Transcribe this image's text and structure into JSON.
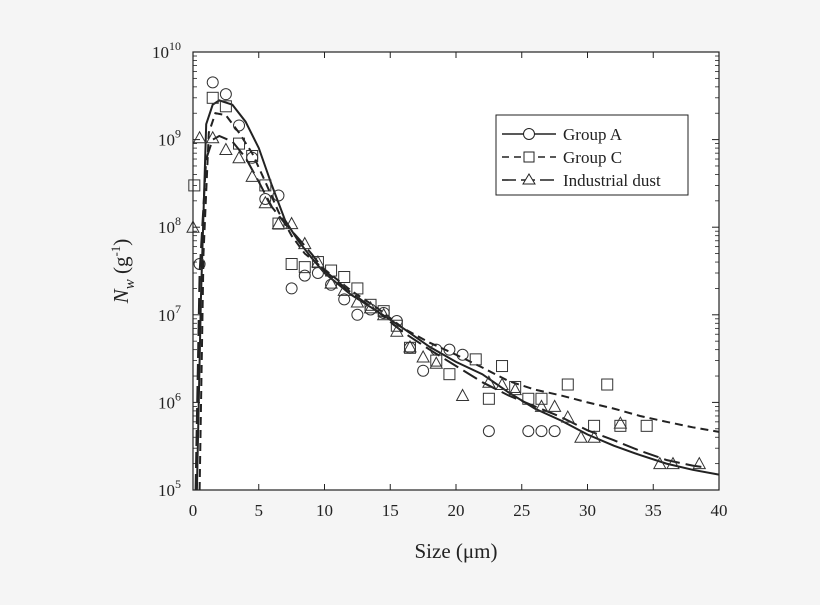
{
  "chart_data": {
    "type": "scatter",
    "xlabel": "Size (μm)",
    "ylabel": {
      "main": "N",
      "sub": "w",
      "unit_open": " (g",
      "unit_exp": "-1",
      "unit_close": ")"
    },
    "xlim": [
      0,
      40
    ],
    "ylim": [
      100000,
      10000000000
    ],
    "yscale": "log",
    "xticks": [
      0,
      5,
      10,
      15,
      20,
      25,
      30,
      35,
      40
    ],
    "yticks": [
      {
        "value": 100000,
        "base": "10",
        "exp": "5"
      },
      {
        "value": 1000000,
        "base": "10",
        "exp": "6"
      },
      {
        "value": 10000000,
        "base": "10",
        "exp": "7"
      },
      {
        "value": 100000000,
        "base": "10",
        "exp": "8"
      },
      {
        "value": 1000000000,
        "base": "10",
        "exp": "9"
      },
      {
        "value": 10000000000,
        "base": "10",
        "exp": "10"
      }
    ],
    "legend_position": "top-right",
    "series": [
      {
        "name": "Group A",
        "marker": "circle",
        "line": "solid",
        "points": [
          [
            0.5,
            38000000
          ],
          [
            1.5,
            4500000000
          ],
          [
            2.5,
            3300000000
          ],
          [
            3.5,
            1450000000
          ],
          [
            4.5,
            620000000
          ],
          [
            5.5,
            210000000
          ],
          [
            6.5,
            230000000
          ],
          [
            7.5,
            20000000
          ],
          [
            8.5,
            28000000
          ],
          [
            9.5,
            30000000
          ],
          [
            10.5,
            22000000
          ],
          [
            11.5,
            15000000
          ],
          [
            12.5,
            10000000
          ],
          [
            13.5,
            11500000
          ],
          [
            14.5,
            10500000
          ],
          [
            15.5,
            8500000
          ],
          [
            16.5,
            4200000
          ],
          [
            17.5,
            2300000
          ],
          [
            18.5,
            4000000
          ],
          [
            19.5,
            4000000
          ],
          [
            20.5,
            3500000
          ],
          [
            22.5,
            470000
          ],
          [
            25.5,
            470000
          ],
          [
            26.5,
            470000
          ],
          [
            27.5,
            470000
          ]
        ],
        "curve": [
          [
            0.3,
            100000
          ],
          [
            0.6,
            15000000
          ],
          [
            1,
            1500000000
          ],
          [
            1.5,
            2500000000
          ],
          [
            2,
            2800000000
          ],
          [
            3,
            2500000000
          ],
          [
            4,
            1600000000
          ],
          [
            5,
            800000000
          ],
          [
            6,
            300000000
          ],
          [
            7,
            120000000
          ],
          [
            8,
            70000000
          ],
          [
            9,
            45000000
          ],
          [
            10,
            30000000
          ],
          [
            12,
            17000000
          ],
          [
            14,
            11000000
          ],
          [
            16,
            7000000
          ],
          [
            18,
            4300000
          ],
          [
            20,
            2900000
          ],
          [
            22,
            2100000
          ],
          [
            24,
            1300000
          ],
          [
            26,
            850000
          ],
          [
            28,
            620000
          ],
          [
            30,
            430000
          ],
          [
            32,
            320000
          ],
          [
            34,
            250000
          ],
          [
            36,
            200000
          ],
          [
            38,
            170000
          ],
          [
            40,
            150000
          ]
        ]
      },
      {
        "name": "Group C",
        "marker": "square",
        "line": "dashed",
        "points": [
          [
            0.1,
            300000000
          ],
          [
            1.5,
            3000000000
          ],
          [
            2.5,
            2400000000
          ],
          [
            3.5,
            900000000
          ],
          [
            4.5,
            650000000
          ],
          [
            5.5,
            300000000
          ],
          [
            6.5,
            110000000
          ],
          [
            7.5,
            38000000
          ],
          [
            8.5,
            35000000
          ],
          [
            9.5,
            40000000
          ],
          [
            10.5,
            32000000
          ],
          [
            11.5,
            27000000
          ],
          [
            12.5,
            20000000
          ],
          [
            13.5,
            13000000
          ],
          [
            14.5,
            11000000
          ],
          [
            15.5,
            7500000
          ],
          [
            16.5,
            4200000
          ],
          [
            18.5,
            3000000
          ],
          [
            19.5,
            2100000
          ],
          [
            21.5,
            3100000
          ],
          [
            22.5,
            1100000
          ],
          [
            23.5,
            2600000
          ],
          [
            24.5,
            1500000
          ],
          [
            25.5,
            1100000
          ],
          [
            26.5,
            1100000
          ],
          [
            28.5,
            1600000
          ],
          [
            30.5,
            540000
          ],
          [
            31.5,
            1600000
          ],
          [
            32.5,
            540000
          ],
          [
            34.5,
            540000
          ]
        ],
        "curve": [
          [
            0.5,
            100000
          ],
          [
            0.8,
            50000000
          ],
          [
            1.2,
            1200000000
          ],
          [
            1.7,
            2000000000
          ],
          [
            2.5,
            1900000000
          ],
          [
            3.5,
            1200000000
          ],
          [
            4.5,
            700000000
          ],
          [
            5.5,
            330000000
          ],
          [
            6.5,
            150000000
          ],
          [
            7.5,
            80000000
          ],
          [
            8.5,
            50000000
          ],
          [
            10,
            33000000
          ],
          [
            12,
            19000000
          ],
          [
            14,
            12000000
          ],
          [
            16,
            7000000
          ],
          [
            18,
            4800000
          ],
          [
            20,
            3500000
          ],
          [
            22,
            2500000
          ],
          [
            24,
            1750000
          ],
          [
            26,
            1400000
          ],
          [
            28,
            1200000
          ],
          [
            30,
            1000000
          ],
          [
            32,
            850000
          ],
          [
            34,
            700000
          ],
          [
            36,
            600000
          ],
          [
            38,
            520000
          ],
          [
            40,
            460000
          ]
        ]
      },
      {
        "name": "Industrial dust",
        "marker": "triangle",
        "line": "longdash",
        "points": [
          [
            0,
            100000000
          ],
          [
            0.5,
            1050000000
          ],
          [
            1.5,
            1050000000
          ],
          [
            2.5,
            770000000
          ],
          [
            3.5,
            620000000
          ],
          [
            4.5,
            380000000
          ],
          [
            5.5,
            190000000
          ],
          [
            6.5,
            110000000
          ],
          [
            7.5,
            110000000
          ],
          [
            8.5,
            65000000
          ],
          [
            9.5,
            40000000
          ],
          [
            10.5,
            23000000
          ],
          [
            11.5,
            19000000
          ],
          [
            12.5,
            14000000
          ],
          [
            13.5,
            12000000
          ],
          [
            14.5,
            10000000
          ],
          [
            15.5,
            6500000
          ],
          [
            16.5,
            4300000
          ],
          [
            17.5,
            3300000
          ],
          [
            18.5,
            2800000
          ],
          [
            20.5,
            1200000
          ],
          [
            22.5,
            1700000
          ],
          [
            23.5,
            1600000
          ],
          [
            24.5,
            1400000
          ],
          [
            26.5,
            900000
          ],
          [
            27.5,
            900000
          ],
          [
            28.5,
            680000
          ],
          [
            29.5,
            400000
          ],
          [
            30.5,
            400000
          ],
          [
            32.5,
            580000
          ],
          [
            35.5,
            200000
          ],
          [
            36.5,
            200000
          ],
          [
            38.5,
            200000
          ]
        ],
        "curve": [
          [
            0.2,
            100000
          ],
          [
            0.5,
            30000000
          ],
          [
            1,
            600000000
          ],
          [
            1.5,
            1000000000
          ],
          [
            2,
            1100000000
          ],
          [
            3,
            950000000
          ],
          [
            4,
            620000000
          ],
          [
            5,
            330000000
          ],
          [
            6,
            170000000
          ],
          [
            7,
            110000000
          ],
          [
            8,
            75000000
          ],
          [
            9,
            50000000
          ],
          [
            10,
            32000000
          ],
          [
            12,
            18000000
          ],
          [
            14,
            11000000
          ],
          [
            16,
            6300000
          ],
          [
            18,
            4000000
          ],
          [
            20,
            2600000
          ],
          [
            22,
            1700000
          ],
          [
            24,
            1200000
          ],
          [
            26,
            900000
          ],
          [
            28,
            680000
          ],
          [
            30,
            480000
          ],
          [
            32,
            370000
          ],
          [
            34,
            280000
          ],
          [
            36,
            220000
          ],
          [
            38,
            190000
          ],
          [
            39,
            180000
          ]
        ]
      }
    ]
  }
}
